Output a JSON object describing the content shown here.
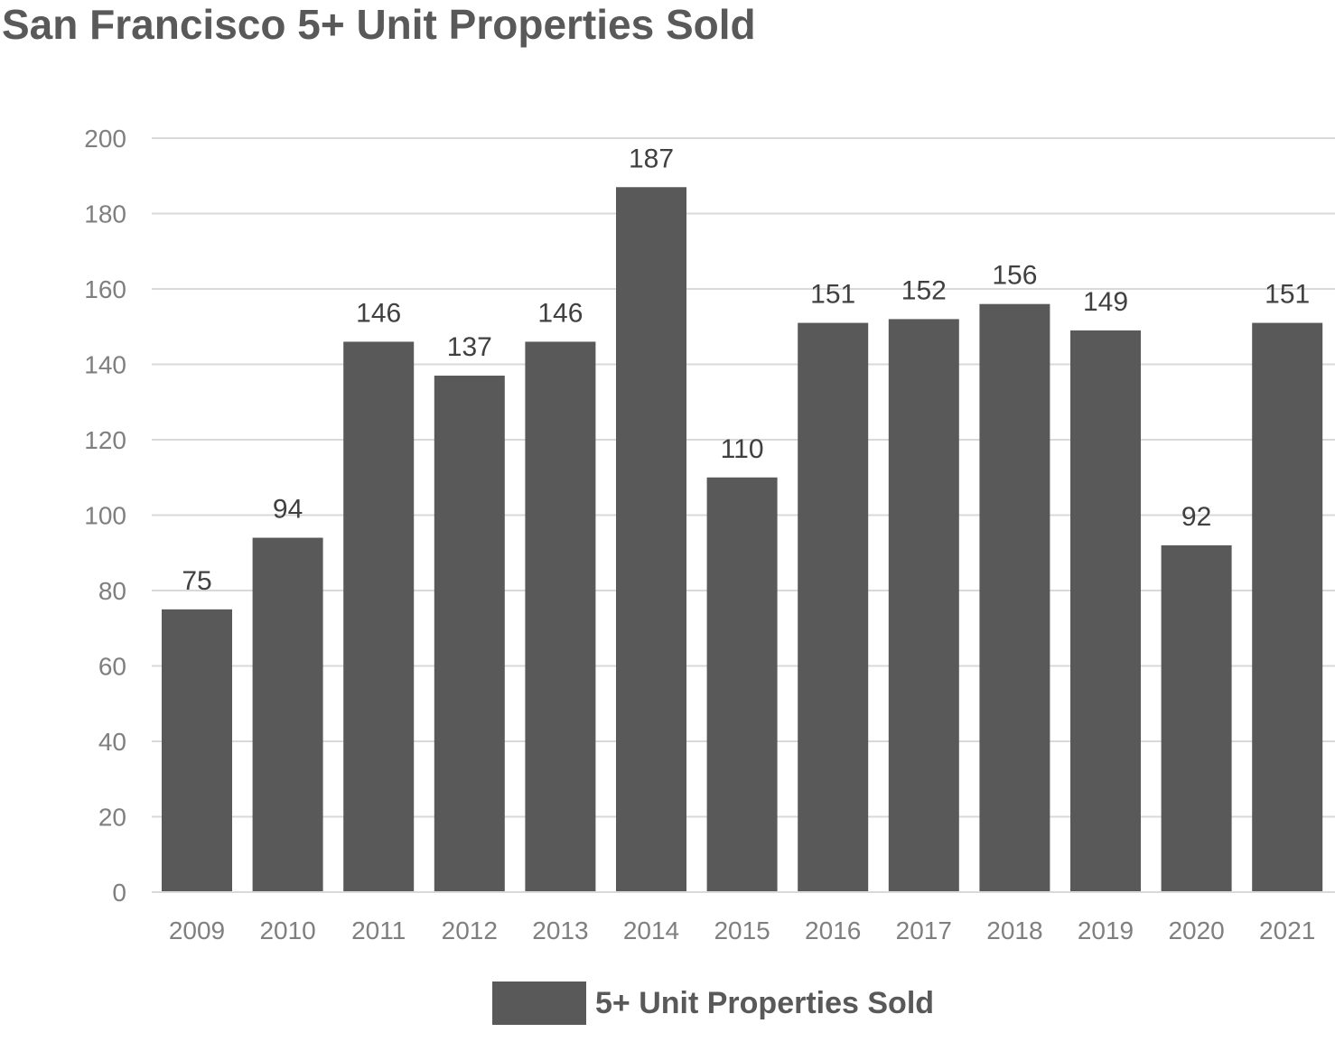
{
  "chart_data": {
    "type": "bar",
    "title": "San Francisco 5+ Unit Properties Sold",
    "xlabel": "",
    "ylabel": "",
    "categories": [
      "2009",
      "2010",
      "2011",
      "2012",
      "2013",
      "2014",
      "2015",
      "2016",
      "2017",
      "2018",
      "2019",
      "2020",
      "2021"
    ],
    "series": [
      {
        "name": "5+ Unit Properties Sold",
        "values": [
          75,
          94,
          146,
          137,
          146,
          187,
          110,
          151,
          152,
          156,
          149,
          92,
          151
        ],
        "color": "#595959"
      }
    ],
    "ylim": [
      0,
      200
    ],
    "yticks": [
      "0",
      "20",
      "40",
      "60",
      "80",
      "100",
      "120",
      "140",
      "160",
      "180",
      "200"
    ],
    "data_labels": true,
    "grid": true,
    "legend_position": "bottom"
  },
  "colors": {
    "bar": "#595959",
    "grid": "#d9d9d9",
    "title": "#595959",
    "tick_text": "#7f7f7f",
    "data_label_text": "#404040"
  }
}
